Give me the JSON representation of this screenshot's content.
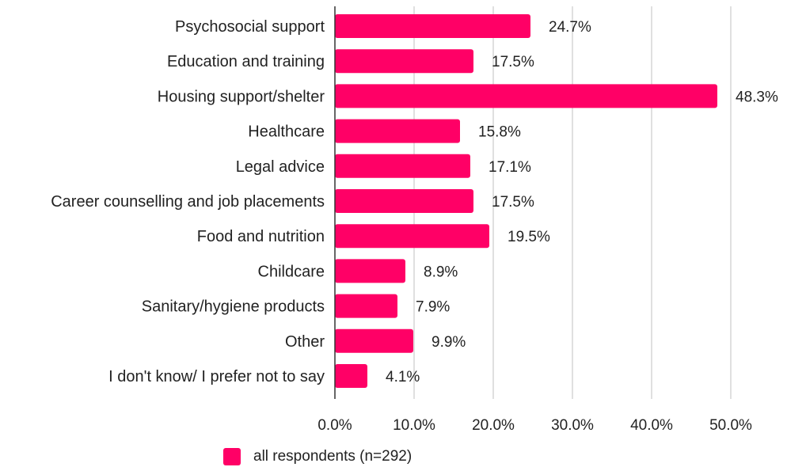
{
  "chart_data": {
    "type": "bar",
    "orientation": "horizontal",
    "categories": [
      "Psychosocial support",
      "Education and training",
      "Housing support/shelter",
      "Healthcare",
      "Legal advice",
      "Career counselling and job placements",
      "Food and nutrition",
      "Childcare",
      "Sanitary/hygiene products",
      "Other",
      "I don't know/ I prefer not to say"
    ],
    "series": [
      {
        "name": "all respondents (n=292)",
        "values": [
          24.7,
          17.5,
          48.3,
          15.8,
          17.1,
          17.5,
          19.5,
          8.9,
          7.9,
          9.9,
          4.1
        ],
        "value_labels": [
          "24.7%",
          "17.5%",
          "48.3%",
          "15.8%",
          "17.1%",
          "17.5%",
          "19.5%",
          "8.9%",
          "7.9%",
          "9.9%",
          "4.1%"
        ]
      }
    ],
    "x_ticks": [
      "0.0%",
      "10.0%",
      "20.0%",
      "30.0%",
      "40.0%",
      "50.0%"
    ],
    "xlim": [
      0,
      50
    ],
    "grid": true,
    "legend_position": "bottom",
    "colors": {
      "bar": "#ff0066",
      "grid": "#cccccc",
      "axis": "#333333"
    }
  },
  "legend": {
    "label": "all respondents (n=292)"
  }
}
